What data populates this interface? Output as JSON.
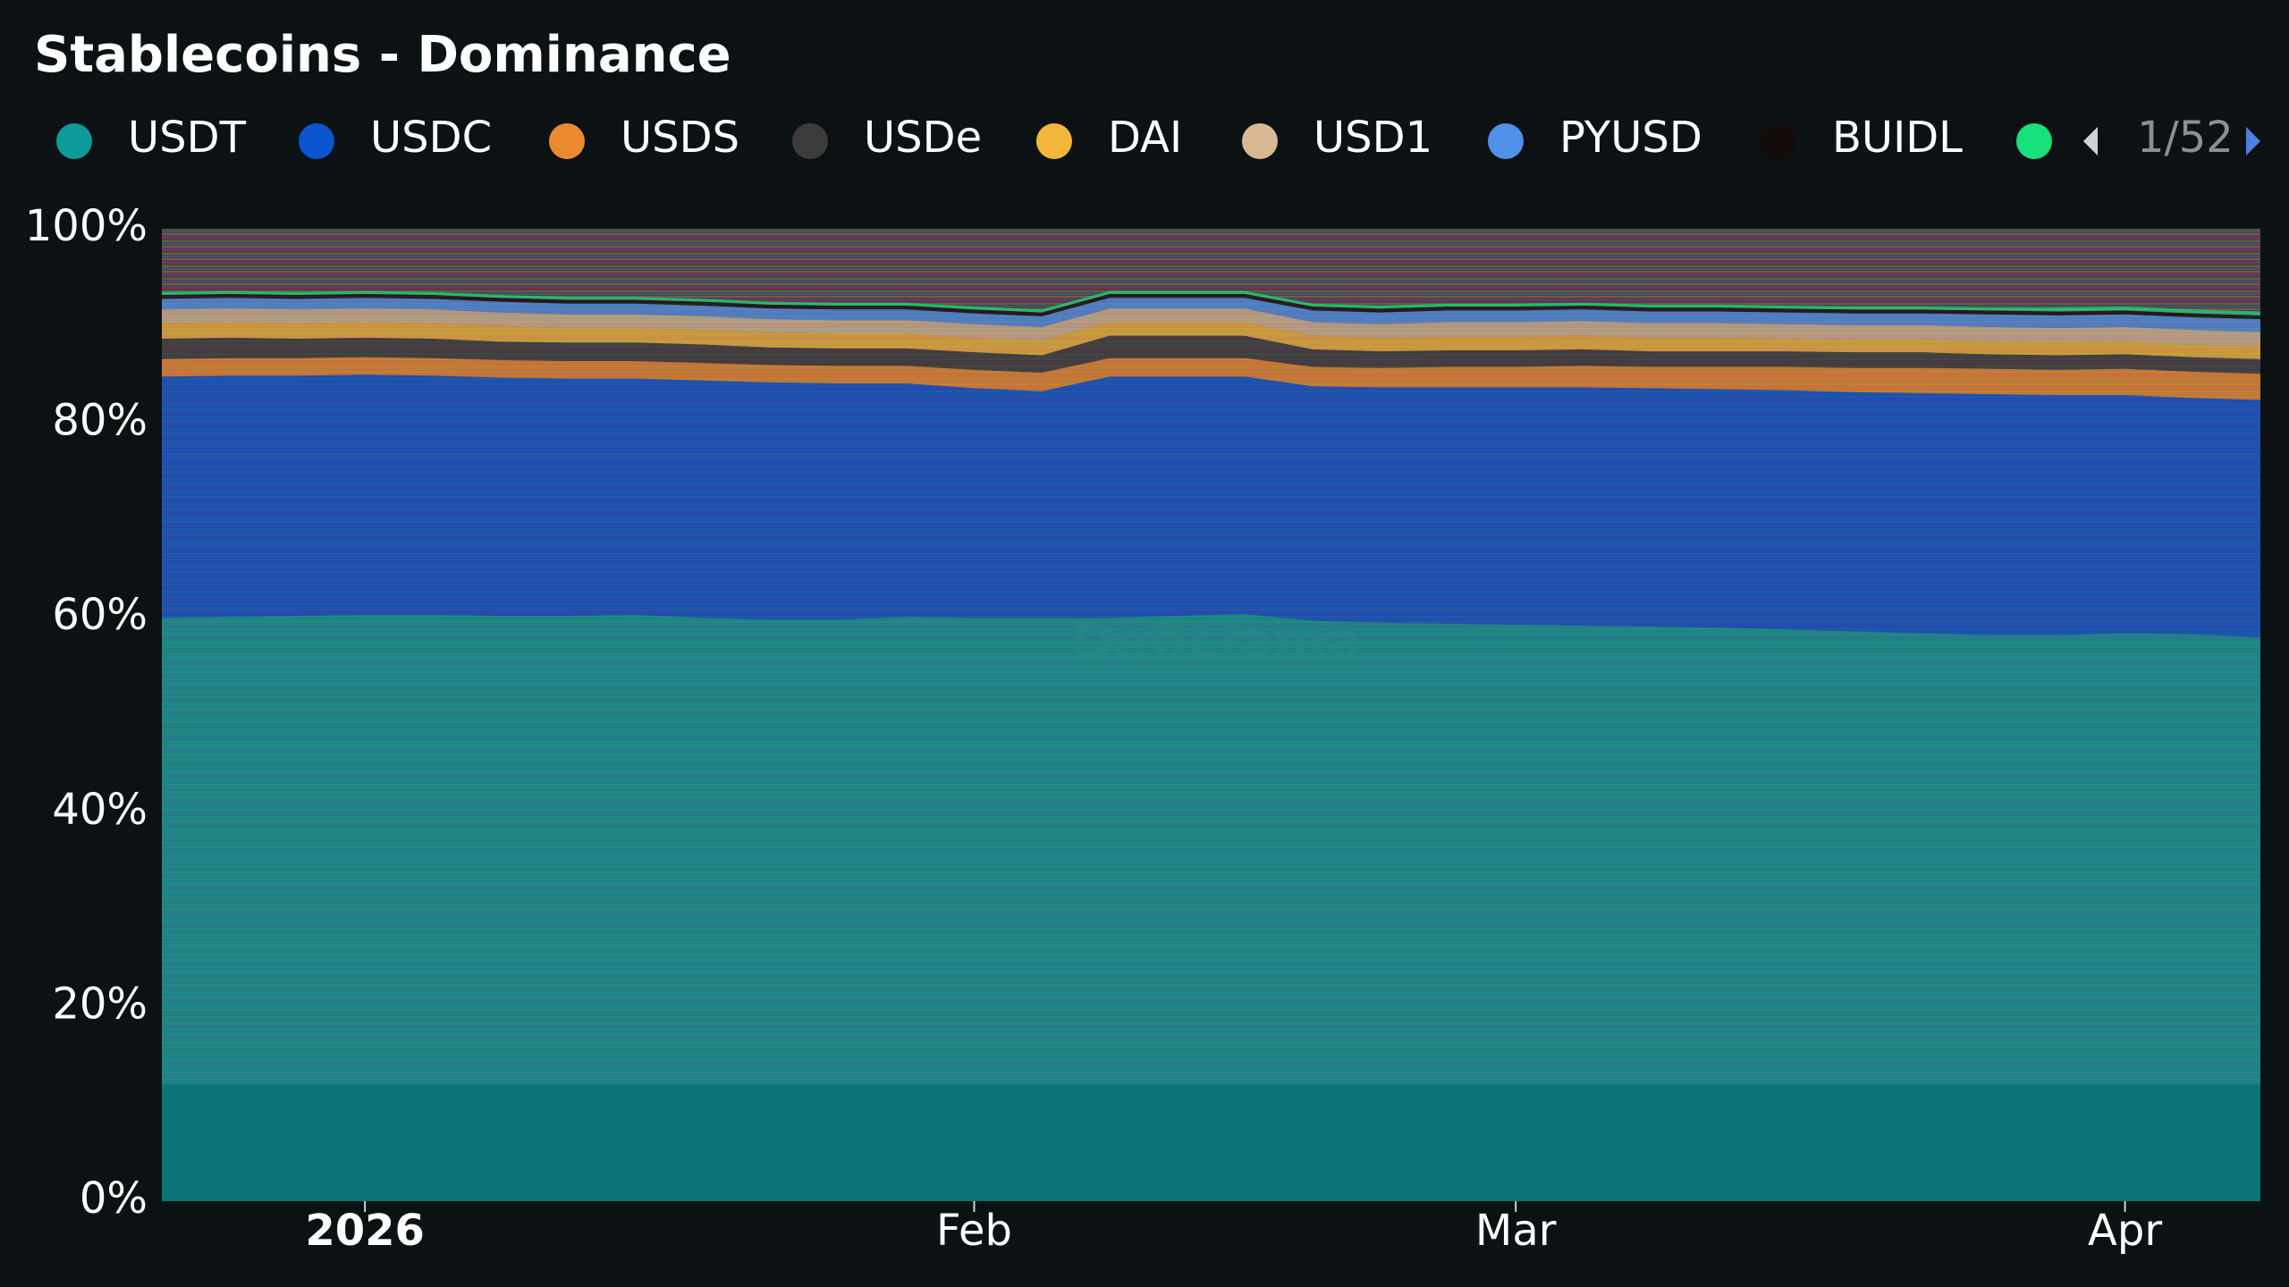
{
  "chart_data": {
    "type": "stacked_area",
    "title": "Stablecoins - Dominance",
    "legend_page": "1/52",
    "watermark": "DefiLlama",
    "categories": [
      null,
      null,
      null,
      "2026",
      null,
      null,
      null,
      null,
      null,
      null,
      null,
      null,
      "Feb",
      null,
      null,
      null,
      null,
      null,
      null,
      null,
      "Mar",
      null,
      null,
      null,
      null,
      null,
      null,
      null,
      null,
      "Apr",
      null,
      null
    ],
    "ylim": [
      0,
      100
    ],
    "yticks": [
      {
        "value": 0,
        "label": "0%"
      },
      {
        "value": 20,
        "label": "20%"
      },
      {
        "value": 40,
        "label": "40%"
      },
      {
        "value": 60,
        "label": "60%"
      },
      {
        "value": 80,
        "label": "80%"
      },
      {
        "value": 100,
        "label": "100%"
      }
    ],
    "series": [
      {
        "name": "USDT",
        "color": "#0d9a9a",
        "values": [
          60.0,
          60.1,
          60.2,
          60.3,
          60.3,
          60.2,
          60.2,
          60.3,
          60.0,
          59.8,
          59.8,
          60.1,
          60.0,
          60.0,
          60.0,
          60.2,
          60.4,
          59.7,
          59.5,
          59.4,
          59.3,
          59.2,
          59.1,
          59.0,
          58.8,
          58.6,
          58.4,
          58.2,
          58.2,
          58.4,
          58.3,
          58.0
        ]
      },
      {
        "name": "USDC",
        "color": "#0b55d0",
        "values": [
          24.8,
          24.8,
          24.7,
          24.7,
          24.6,
          24.5,
          24.4,
          24.3,
          24.4,
          24.4,
          24.3,
          24.0,
          23.6,
          23.3,
          24.8,
          24.6,
          24.4,
          24.1,
          24.2,
          24.3,
          24.4,
          24.5,
          24.5,
          24.5,
          24.6,
          24.6,
          24.7,
          24.8,
          24.7,
          24.5,
          24.3,
          24.4
        ]
      },
      {
        "name": "USDS",
        "color": "#ec8a2f",
        "values": [
          1.8,
          1.8,
          1.8,
          1.8,
          1.8,
          1.8,
          1.8,
          1.8,
          1.8,
          1.8,
          1.8,
          1.8,
          1.9,
          1.9,
          1.9,
          1.9,
          1.9,
          2.0,
          2.0,
          2.1,
          2.1,
          2.2,
          2.2,
          2.3,
          2.4,
          2.5,
          2.6,
          2.6,
          2.6,
          2.7,
          2.7,
          2.7
        ]
      },
      {
        "name": "USDe",
        "color": "#3c3c3c",
        "values": [
          2.1,
          2.1,
          2.0,
          2.0,
          2.0,
          1.9,
          1.9,
          1.9,
          1.9,
          1.8,
          1.8,
          1.8,
          1.8,
          1.8,
          2.3,
          2.3,
          2.3,
          1.8,
          1.7,
          1.7,
          1.7,
          1.7,
          1.6,
          1.6,
          1.6,
          1.6,
          1.6,
          1.5,
          1.5,
          1.5,
          1.5,
          1.5
        ]
      },
      {
        "name": "DAI",
        "color": "#f4b63a",
        "values": [
          1.6,
          1.6,
          1.6,
          1.6,
          1.6,
          1.6,
          1.5,
          1.5,
          1.5,
          1.5,
          1.5,
          1.5,
          1.5,
          1.5,
          1.4,
          1.4,
          1.4,
          1.4,
          1.4,
          1.4,
          1.4,
          1.4,
          1.4,
          1.4,
          1.3,
          1.3,
          1.3,
          1.3,
          1.3,
          1.3,
          1.3,
          1.3
        ]
      },
      {
        "name": "USD1",
        "color": "#d6b892",
        "values": [
          1.4,
          1.4,
          1.4,
          1.4,
          1.4,
          1.4,
          1.4,
          1.4,
          1.4,
          1.4,
          1.4,
          1.4,
          1.4,
          1.4,
          1.4,
          1.4,
          1.4,
          1.4,
          1.4,
          1.5,
          1.5,
          1.5,
          1.5,
          1.5,
          1.5,
          1.5,
          1.5,
          1.5,
          1.5,
          1.5,
          1.5,
          1.5
        ]
      },
      {
        "name": "PYUSD",
        "color": "#4f91e8",
        "values": [
          1.1,
          1.1,
          1.1,
          1.1,
          1.1,
          1.1,
          1.1,
          1.1,
          1.1,
          1.1,
          1.1,
          1.1,
          1.1,
          1.1,
          1.1,
          1.1,
          1.1,
          1.2,
          1.2,
          1.2,
          1.2,
          1.2,
          1.2,
          1.2,
          1.2,
          1.2,
          1.2,
          1.3,
          1.3,
          1.3,
          1.3,
          1.3
        ]
      },
      {
        "name": "BUIDL",
        "color": "#140b0b",
        "values": [
          0.4,
          0.4,
          0.4,
          0.4,
          0.4,
          0.4,
          0.4,
          0.4,
          0.4,
          0.4,
          0.4,
          0.4,
          0.4,
          0.4,
          0.4,
          0.4,
          0.4,
          0.4,
          0.4,
          0.4,
          0.4,
          0.4,
          0.4,
          0.4,
          0.4,
          0.4,
          0.4,
          0.4,
          0.4,
          0.4,
          0.4,
          0.4
        ]
      },
      {
        "name": null,
        "color": "#18e07a",
        "values": [
          0.3,
          0.3,
          0.3,
          0.3,
          0.3,
          0.3,
          0.3,
          0.3,
          0.3,
          0.3,
          0.3,
          0.3,
          0.3,
          0.3,
          0.3,
          0.3,
          0.3,
          0.3,
          0.3,
          0.3,
          0.3,
          0.3,
          0.3,
          0.3,
          0.3,
          0.3,
          0.3,
          0.3,
          0.4,
          0.4,
          0.4,
          0.4
        ]
      }
    ]
  }
}
